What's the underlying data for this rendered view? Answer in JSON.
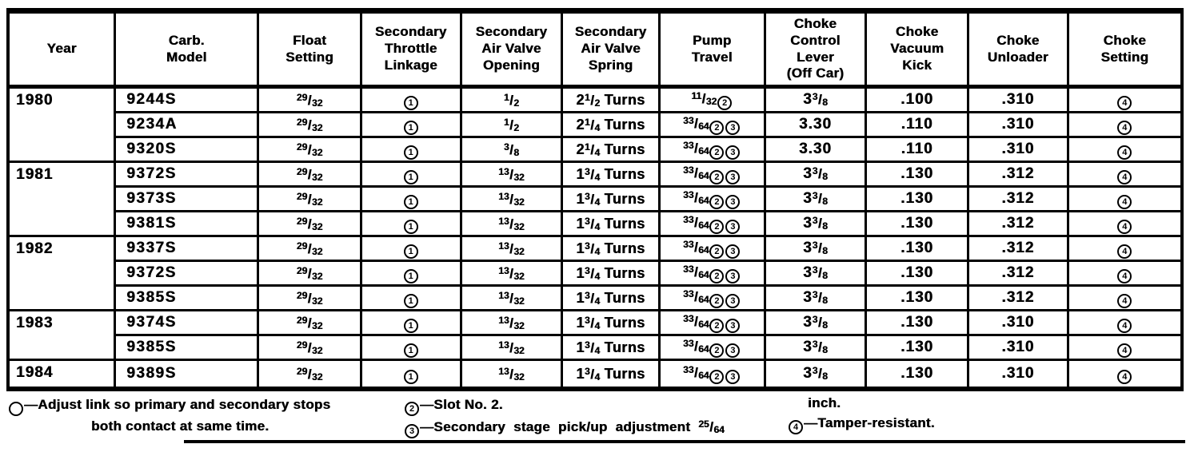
{
  "doc": {
    "type": "carburetor-specifications-table",
    "ink_color": "#000000",
    "paper_color": "#ffffff"
  },
  "table": {
    "columns": [
      {
        "key": "year",
        "label": "Year"
      },
      {
        "key": "model",
        "label": "Carb.\nModel"
      },
      {
        "key": "float",
        "label": "Float\nSetting"
      },
      {
        "key": "linkage",
        "label": "Secondary\nThrottle\nLinkage"
      },
      {
        "key": "opening",
        "label": "Secondary\nAir Valve\nOpening"
      },
      {
        "key": "spring",
        "label": "Secondary\nAir Valve\nSpring"
      },
      {
        "key": "pump",
        "label": "Pump\nTravel"
      },
      {
        "key": "lever",
        "label": "Choke\nControl\nLever\n(Off Car)"
      },
      {
        "key": "kick",
        "label": "Choke\nVacuum\nKick"
      },
      {
        "key": "unloader",
        "label": "Choke\nUnloader"
      },
      {
        "key": "setting",
        "label": "Choke\nSetting"
      }
    ],
    "rows": [
      {
        "year": "1980",
        "rowspan": 3,
        "model": "9244S",
        "float": "{29/32}",
        "linkage": "(1)",
        "opening": "{1/2}",
        "spring": "2{1/2} Turns",
        "pump": "{11/32}(2)",
        "lever": "3{3/8}",
        "kick": ".100",
        "unloader": ".310",
        "setting": "(4)"
      },
      {
        "model": "9234A",
        "float": "{29/32}",
        "linkage": "(1)",
        "opening": "{1/2}",
        "spring": "2{1/4} Turns",
        "pump": "{33/64}(2)(3)",
        "lever": "3.30",
        "kick": ".110",
        "unloader": ".310",
        "setting": "(4)"
      },
      {
        "model": "9320S",
        "float": "{29/32}",
        "linkage": "(1)",
        "opening": "{3/8}",
        "spring": "2{1/4} Turns",
        "pump": "{33/64}(2)(3)",
        "lever": "3.30",
        "kick": ".110",
        "unloader": ".310",
        "setting": "(4)"
      },
      {
        "year": "1981",
        "rowspan": 3,
        "model": "9372S",
        "float": "{29/32}",
        "linkage": "(1)",
        "opening": "{13/32}",
        "spring": "1{3/4} Turns",
        "pump": "{33/64}(2)(3)",
        "lever": "3{3/8}",
        "kick": ".130",
        "unloader": ".312",
        "setting": "(4)"
      },
      {
        "model": "9373S",
        "float": "{29/32}",
        "linkage": "(1)",
        "opening": "{13/32}",
        "spring": "1{3/4} Turns",
        "pump": "{33/64}(2)(3)",
        "lever": "3{3/8}",
        "kick": ".130",
        "unloader": ".312",
        "setting": "(4)"
      },
      {
        "model": "9381S",
        "float": "{29/32}",
        "linkage": "(1)",
        "opening": "{13/32}",
        "spring": "1{3/4} Turns",
        "pump": "{33/64}(2)(3)",
        "lever": "3{3/8}",
        "kick": ".130",
        "unloader": ".312",
        "setting": "(4)"
      },
      {
        "year": "1982",
        "rowspan": 3,
        "model": "9337S",
        "float": "{29/32}",
        "linkage": "(1)",
        "opening": "{13/32}",
        "spring": "1{3/4} Turns",
        "pump": "{33/64}(2)(3)",
        "lever": "3{3/8}",
        "kick": ".130",
        "unloader": ".312",
        "setting": "(4)"
      },
      {
        "model": "9372S",
        "float": "{29/32}",
        "linkage": "(1)",
        "opening": "{13/32}",
        "spring": "1{3/4} Turns",
        "pump": "{33/64}(2)(3)",
        "lever": "3{3/8}",
        "kick": ".130",
        "unloader": ".312",
        "setting": "(4)"
      },
      {
        "model": "9385S",
        "float": "{29/32}",
        "linkage": "(1)",
        "opening": "{13/32}",
        "spring": "1{3/4} Turns",
        "pump": "{33/64}(2)(3)",
        "lever": "3{3/8}",
        "kick": ".130",
        "unloader": ".312",
        "setting": "(4)"
      },
      {
        "year": "1983",
        "rowspan": 2,
        "model": "9374S",
        "float": "{29/32}",
        "linkage": "(1)",
        "opening": "{13/32}",
        "spring": "1{3/4} Turns",
        "pump": "{33/64}(2)(3)",
        "lever": "3{3/8}",
        "kick": ".130",
        "unloader": ".310",
        "setting": "(4)"
      },
      {
        "model": "9385S",
        "float": "{29/32}",
        "linkage": "(1)",
        "opening": "{13/32}",
        "spring": "1{3/4} Turns",
        "pump": "{33/64}(2)(3)",
        "lever": "3{3/8}",
        "kick": ".130",
        "unloader": ".310",
        "setting": "(4)"
      },
      {
        "year": "1984",
        "rowspan": 1,
        "model": "9389S",
        "float": "{29/32}",
        "linkage": "(1)",
        "opening": "{13/32}",
        "spring": "1{3/4} Turns",
        "pump": "{33/64}(2)(3)",
        "lever": "3{3/8}",
        "kick": ".130",
        "unloader": ".310",
        "setting": "(4)"
      }
    ]
  },
  "footnotes": {
    "fn1": "(1)—Adjust link so primary and secondary stops\nboth contact at same time.",
    "fn2_line1": "(2)—Slot No. 2.",
    "fn2_line2": "(3)—Secondary stage pick/up adjustment {25/64}",
    "fn3_line1": "inch.",
    "fn3_line2": "(4)—Tamper-resistant."
  }
}
